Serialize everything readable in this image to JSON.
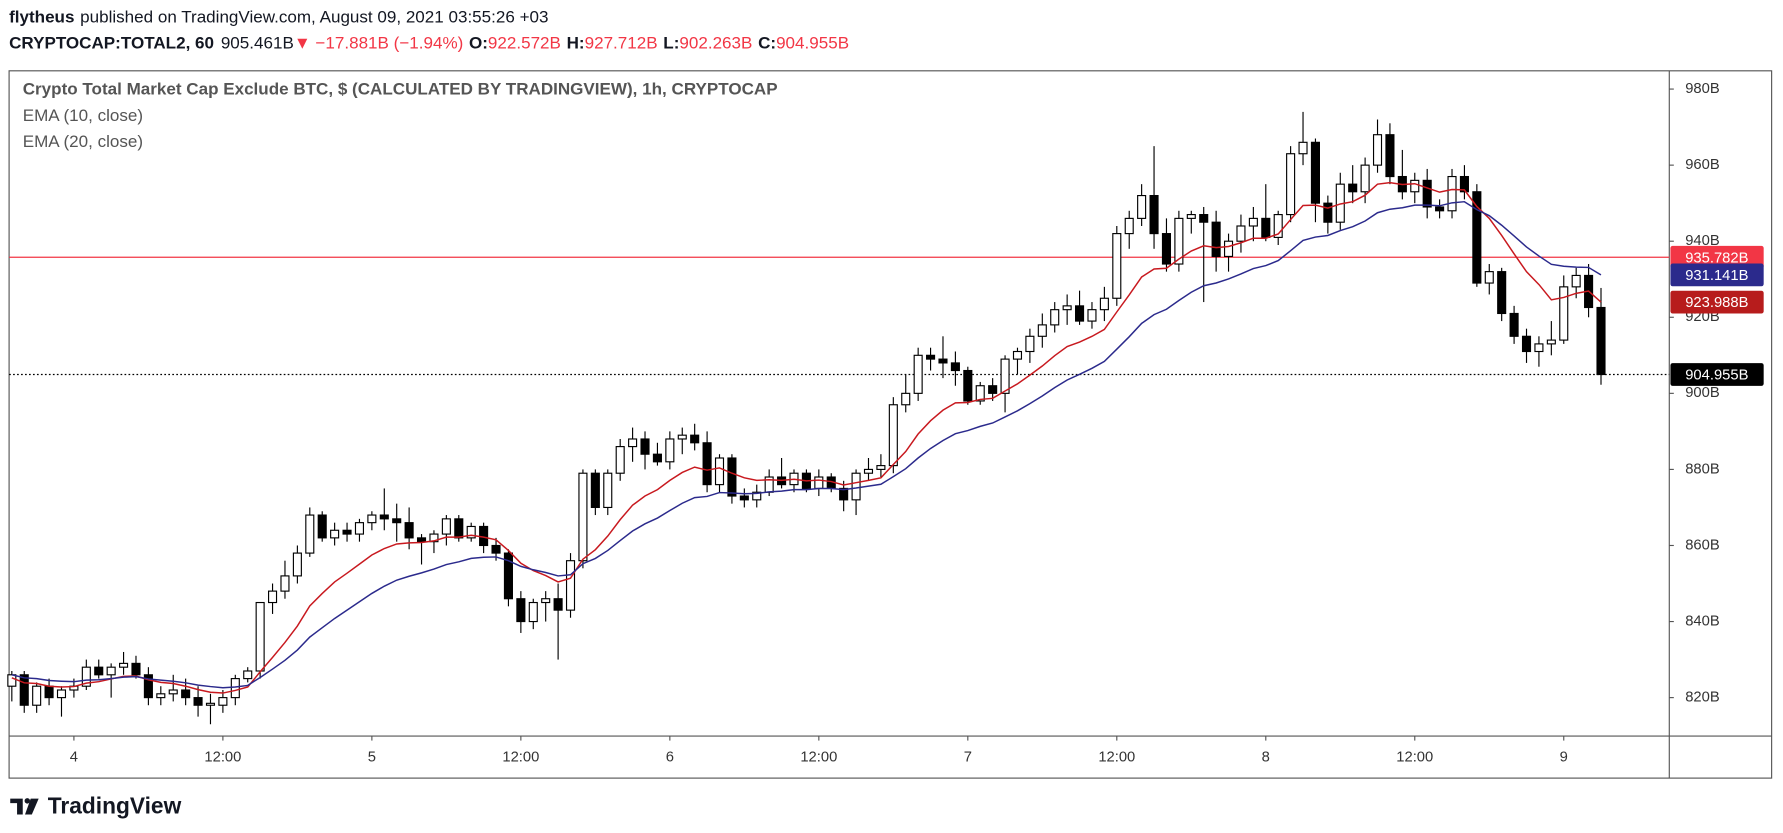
{
  "header": {
    "author": "flytheus",
    "published": "published on TradingView.com, August 09, 2021 03:55:26 +03",
    "symbol": "CRYPTOCAP:TOTAL2, 60",
    "last": "905.461B",
    "change": "▼ −17.881B (−1.94%)",
    "ohlc": [
      {
        "key": "O:",
        "value": "922.572B"
      },
      {
        "key": "H:",
        "value": "927.712B"
      },
      {
        "key": "L:",
        "value": "902.263B"
      },
      {
        "key": "C:",
        "value": "904.955B"
      }
    ]
  },
  "brand": "TradingView",
  "chart_data": {
    "type": "candlestick",
    "title": "Crypto Total Market Cap Exclude BTC, $ (CALCULATED BY TRADINGVIEW), 1h, CRYPTOCAP",
    "up_color": "#ffffff",
    "down_color": "#000000",
    "wick_color": "#000000",
    "open": [
      823,
      826,
      818,
      823,
      820,
      822,
      823,
      828,
      826,
      828,
      829,
      826,
      820,
      821,
      822,
      820,
      818,
      818,
      820,
      825,
      827,
      845,
      848,
      852,
      858,
      868,
      862,
      864,
      863,
      866,
      868,
      867,
      866,
      862,
      861,
      863,
      867,
      862,
      865,
      860,
      858,
      846,
      840,
      845,
      846,
      843,
      856,
      879,
      870,
      879,
      886,
      888,
      884,
      882,
      888,
      889,
      887,
      876,
      883,
      873,
      872,
      874,
      878,
      876,
      879,
      875,
      878,
      875,
      872,
      879,
      880,
      881,
      897,
      900,
      910,
      909,
      908,
      906,
      898,
      902,
      900,
      909,
      911,
      915,
      918,
      922,
      923,
      919,
      922,
      925,
      942,
      946,
      952,
      942,
      934,
      946,
      947,
      945,
      936,
      940,
      944,
      946,
      941,
      947,
      963,
      966,
      950,
      945,
      955,
      953,
      960,
      968,
      957,
      953,
      956,
      949,
      948,
      957,
      953,
      929,
      932,
      921,
      915,
      911,
      913,
      914,
      928,
      931,
      922.572
    ],
    "high": [
      827,
      827,
      824,
      825,
      823,
      825,
      830,
      830,
      829,
      832,
      831,
      828,
      823,
      826,
      825,
      823,
      821,
      822,
      826,
      828,
      845,
      850,
      856,
      860,
      870,
      869,
      866,
      866,
      867,
      869,
      875,
      871,
      870,
      863,
      864,
      868,
      868,
      866,
      866,
      862,
      859,
      848,
      846,
      848,
      850,
      858,
      880,
      880,
      880,
      888,
      891,
      890,
      887,
      890,
      891,
      892,
      890,
      884,
      884,
      875,
      876,
      880,
      883,
      880,
      880,
      880,
      879,
      877,
      880,
      883,
      884,
      899,
      905,
      912,
      912,
      915,
      911,
      907,
      903,
      904,
      910,
      912,
      917,
      921,
      924,
      926,
      927,
      924,
      928,
      944,
      948,
      955,
      965,
      946,
      948,
      948,
      949,
      948,
      942,
      947,
      949,
      955,
      948,
      965,
      974,
      967,
      952,
      958,
      960,
      962,
      972,
      971,
      964,
      958,
      959,
      951,
      959,
      960,
      955,
      934,
      933,
      923,
      917,
      915,
      919,
      931,
      933,
      934,
      927.712
    ],
    "low": [
      819,
      816,
      816,
      818,
      815,
      820,
      822,
      825,
      820,
      826,
      825,
      818,
      818,
      819,
      818,
      815,
      813,
      816,
      818,
      824,
      825,
      842,
      846,
      850,
      857,
      861,
      860,
      861,
      861,
      864,
      864,
      861,
      859,
      855,
      858,
      860,
      861,
      861,
      858,
      856,
      844,
      837,
      838,
      840,
      830,
      841,
      854,
      868,
      868,
      877,
      882,
      880,
      881,
      880,
      884,
      885,
      874,
      874,
      871,
      870,
      870,
      873,
      875,
      874,
      874,
      873,
      874,
      869,
      868,
      877,
      878,
      879,
      895,
      898,
      906,
      904,
      902,
      897,
      897,
      898,
      895,
      905,
      908,
      912,
      916,
      918,
      918,
      917,
      919,
      923,
      938,
      944,
      938,
      932,
      932,
      942,
      924,
      932,
      932,
      937,
      940,
      940,
      939,
      945,
      960,
      945,
      942,
      943,
      950,
      950,
      958,
      955,
      951,
      950,
      946,
      946,
      946,
      951,
      928,
      926,
      919,
      913,
      908,
      907,
      910,
      913,
      925,
      920,
      902.263
    ],
    "close": [
      826,
      818,
      823,
      820,
      822,
      823,
      828,
      826,
      828,
      829,
      826,
      820,
      821,
      822,
      820,
      818,
      818.5,
      820,
      825,
      827,
      845,
      848,
      852,
      858,
      868,
      862,
      864,
      863,
      866,
      868,
      867,
      866,
      862,
      861,
      863,
      867,
      862,
      865,
      860,
      858,
      846,
      840,
      845,
      846,
      843,
      856,
      879,
      870,
      879,
      886,
      888,
      884,
      882,
      888,
      889,
      887,
      876,
      883,
      873,
      872,
      874,
      878,
      876,
      879,
      875,
      878,
      875,
      872,
      879,
      880,
      881,
      897,
      900,
      910,
      909,
      908,
      906,
      898,
      902,
      900,
      909,
      911,
      915,
      918,
      922,
      923,
      919,
      922,
      925,
      942,
      946,
      952,
      942,
      934,
      946,
      947,
      945,
      936,
      940,
      944,
      946,
      941,
      947,
      963,
      966,
      950,
      945,
      955,
      953,
      960,
      968,
      957,
      953,
      956,
      949,
      948,
      957,
      953,
      929,
      932,
      921,
      915,
      911,
      913,
      914,
      928,
      931,
      922.572,
      904.955
    ],
    "series": [
      {
        "name": "EMA (10, close)",
        "color": "#c8191f",
        "values": [
          825.2,
          823.9,
          823.7,
          823.0,
          822.8,
          822.9,
          823.8,
          824.2,
          824.9,
          825.6,
          825.7,
          824.7,
          824.0,
          823.7,
          823.0,
          822.1,
          821.4,
          821.2,
          821.9,
          822.8,
          826.8,
          830.6,
          834.5,
          838.8,
          844.1,
          847.4,
          850.4,
          852.7,
          855.1,
          857.5,
          859.2,
          860.4,
          860.7,
          860.8,
          861.2,
          862.2,
          862.2,
          862.7,
          862.2,
          861.5,
          858.7,
          855.3,
          853.4,
          852.1,
          850.4,
          851.4,
          856.4,
          858.9,
          862.5,
          866.8,
          870.6,
          873.0,
          874.7,
          877.1,
          879.2,
          880.6,
          879.8,
          880.4,
          879.0,
          877.8,
          877.1,
          877.3,
          877.1,
          877.4,
          877.0,
          877.2,
          876.8,
          875.9,
          876.5,
          877.1,
          877.8,
          881.3,
          884.7,
          889.3,
          892.8,
          895.6,
          897.5,
          897.6,
          898.4,
          898.7,
          900.6,
          902.5,
          904.8,
          907.2,
          909.9,
          912.3,
          913.5,
          915.0,
          916.8,
          921.4,
          925.9,
          930.6,
          932.7,
          932.9,
          935.3,
          937.4,
          938.8,
          938.3,
          938.6,
          939.6,
          940.8,
          940.8,
          941.9,
          945.7,
          949.4,
          949.5,
          948.7,
          949.8,
          950.4,
          952.1,
          955.0,
          955.4,
          954.9,
          955.1,
          954.0,
          952.9,
          953.6,
          953.5,
          949.1,
          946.0,
          941.5,
          936.7,
          932.0,
          928.6,
          924.6,
          925.2,
          926.3,
          926.9,
          923.988
        ]
      },
      {
        "name": "EMA (20, close)",
        "color": "#2b2a8c",
        "values": [
          826.0,
          825.2,
          825.0,
          824.5,
          824.3,
          824.2,
          824.6,
          824.7,
          825.0,
          825.4,
          825.5,
          824.9,
          824.6,
          824.3,
          823.9,
          823.3,
          822.9,
          822.6,
          822.8,
          823.2,
          825.3,
          827.5,
          829.8,
          832.5,
          835.9,
          838.4,
          840.8,
          843.0,
          845.2,
          847.4,
          849.3,
          850.9,
          851.9,
          852.8,
          853.8,
          855.0,
          855.7,
          856.6,
          856.9,
          857.0,
          856.0,
          854.5,
          853.6,
          852.9,
          852.0,
          852.3,
          855.2,
          856.6,
          858.7,
          861.3,
          863.8,
          865.7,
          867.2,
          869.2,
          871.1,
          872.6,
          872.9,
          873.9,
          873.8,
          873.6,
          873.7,
          874.1,
          874.3,
          874.7,
          874.7,
          875.0,
          875.0,
          874.7,
          875.1,
          875.6,
          876.1,
          878.1,
          880.2,
          883.0,
          885.5,
          887.6,
          889.4,
          890.2,
          891.3,
          892.2,
          893.8,
          895.4,
          897.3,
          899.3,
          901.5,
          903.5,
          905.0,
          906.6,
          908.4,
          911.6,
          914.9,
          918.4,
          920.7,
          922.1,
          924.4,
          926.6,
          928.3,
          929.0,
          930.1,
          931.4,
          932.8,
          933.6,
          934.9,
          937.5,
          940.2,
          941.1,
          941.5,
          942.8,
          943.8,
          945.3,
          947.5,
          948.4,
          948.8,
          949.5,
          949.5,
          949.3,
          950.1,
          950.4,
          948.3,
          946.7,
          944.2,
          941.4,
          938.5,
          936.1,
          933.9,
          933.4,
          933.2,
          933.1,
          931.141
        ]
      }
    ],
    "xlim": [
      -0.22,
      133.5
    ],
    "xticks": [
      {
        "value": 5,
        "label": "4"
      },
      {
        "value": 17,
        "label": "12:00"
      },
      {
        "value": 29,
        "label": "5"
      },
      {
        "value": 41,
        "label": "12:00"
      },
      {
        "value": 53,
        "label": "6"
      },
      {
        "value": 65,
        "label": "12:00"
      },
      {
        "value": 77,
        "label": "7"
      },
      {
        "value": 89,
        "label": "12:00"
      },
      {
        "value": 101,
        "label": "8"
      },
      {
        "value": 113,
        "label": "12:00"
      },
      {
        "value": 125,
        "label": "9"
      }
    ],
    "ylim": [
      809.9,
      984.8
    ],
    "yticks": [
      {
        "value": 820,
        "label": "820B"
      },
      {
        "value": 840,
        "label": "840B"
      },
      {
        "value": 860,
        "label": "860B"
      },
      {
        "value": 880,
        "label": "880B"
      },
      {
        "value": 900,
        "label": "900B"
      },
      {
        "value": 920,
        "label": "920B"
      },
      {
        "value": 940,
        "label": "940B"
      },
      {
        "value": 960,
        "label": "960B"
      },
      {
        "value": 980,
        "label": "980B"
      }
    ],
    "grid": false,
    "price_labels": [
      {
        "value": 935.782,
        "label": "935.782B",
        "color": "#f23645",
        "line_style": "solid"
      },
      {
        "value": 931.141,
        "label": "931.141B",
        "color": "#2b2a8c",
        "line_style": null
      },
      {
        "value": 923.988,
        "label": "923.988B",
        "color": "#b71c1c",
        "line_style": null
      },
      {
        "value": 904.955,
        "label": "904.955B",
        "color": "#000000",
        "line_style": "dotted"
      }
    ]
  }
}
